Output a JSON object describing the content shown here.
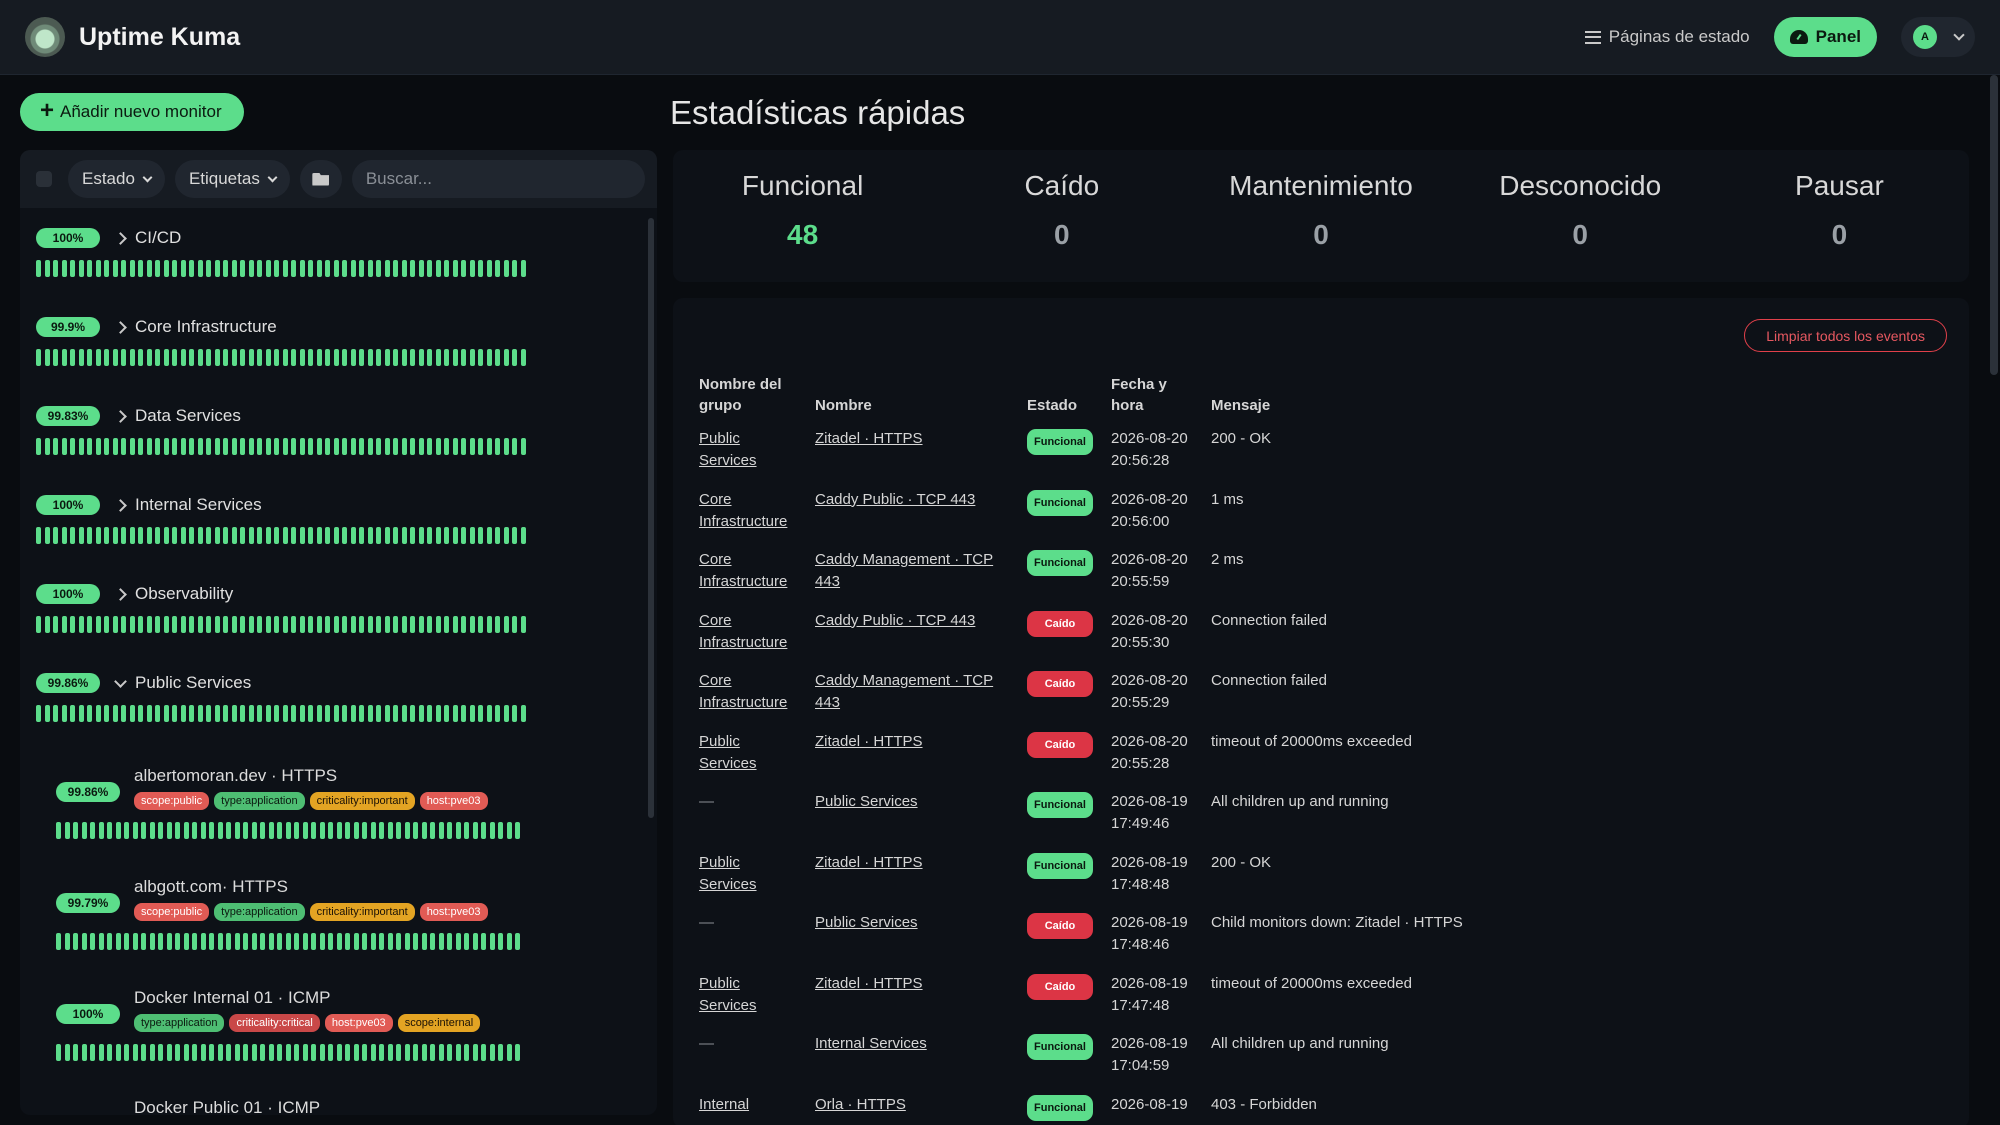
{
  "header": {
    "app_title": "Uptime Kuma",
    "status_pages_label": "Páginas de estado",
    "panel_label": "Panel",
    "avatar_initial": "A"
  },
  "sidebar": {
    "add_monitor_label": "Añadir nuevo monitor",
    "filter_state_label": "Estado",
    "filter_tags_label": "Etiquetas",
    "search_placeholder": "Buscar...",
    "groups": [
      {
        "name": "CI/CD",
        "uptime": "100%"
      },
      {
        "name": "Core Infrastructure",
        "uptime": "99.9%"
      },
      {
        "name": "Data Services",
        "uptime": "99.83%"
      },
      {
        "name": "Internal Services",
        "uptime": "100%"
      },
      {
        "name": "Observability",
        "uptime": "100%"
      },
      {
        "name": "Public Services",
        "uptime": "99.86%"
      }
    ],
    "children": [
      {
        "name": "albertomoran.dev · HTTPS",
        "uptime": "99.86%",
        "tags": [
          {
            "text": "scope:public",
            "color": "#e15b55"
          },
          {
            "text": "type:application",
            "color": "#4ebe73"
          },
          {
            "text": "criticality:important",
            "color": "#e3a423"
          },
          {
            "text": "host:pve03",
            "color": "#e15b55"
          }
        ]
      },
      {
        "name": "albgott.com· HTTPS",
        "uptime": "99.79%",
        "tags": [
          {
            "text": "scope:public",
            "color": "#e15b55"
          },
          {
            "text": "type:application",
            "color": "#4ebe73"
          },
          {
            "text": "criticality:important",
            "color": "#e3a423"
          },
          {
            "text": "host:pve03",
            "color": "#e15b55"
          }
        ]
      },
      {
        "name": "Docker Internal 01 · ICMP",
        "uptime": "100%",
        "tags": [
          {
            "text": "type:application",
            "color": "#4ebe73"
          },
          {
            "text": "criticality:critical",
            "color": "#c94848"
          },
          {
            "text": "host:pve03",
            "color": "#e15b55"
          },
          {
            "text": "scope:internal",
            "color": "#e3a423"
          }
        ]
      },
      {
        "name": "Docker Public 01 · ICMP"
      }
    ]
  },
  "stats": {
    "title": "Estadísticas rápidas",
    "items": [
      {
        "label": "Funcional",
        "value": "48"
      },
      {
        "label": "Caído",
        "value": "0"
      },
      {
        "label": "Mantenimiento",
        "value": "0"
      },
      {
        "label": "Desconocido",
        "value": "0"
      },
      {
        "label": "Pausar",
        "value": "0"
      }
    ]
  },
  "events": {
    "clear_label": "Limpiar todos los eventos",
    "headers": {
      "group_line1": "Nombre del",
      "group_line2": "grupo",
      "name": "Nombre",
      "state": "Estado",
      "date_line1": "Fecha y",
      "date_line2": "hora",
      "message": "Mensaje"
    },
    "rows": [
      {
        "group1": "Public",
        "group2": "Services",
        "name1": "Zitadel · HTTPS",
        "name2": "",
        "state": "Funcional",
        "date": "2026-08-20",
        "time": "20:56:28",
        "message": "200 - OK"
      },
      {
        "group1": "Core",
        "group2": "Infrastructure",
        "name1": "Caddy Public · TCP 443",
        "name2": "",
        "state": "Funcional",
        "date": "2026-08-20",
        "time": "20:56:00",
        "message": "1 ms"
      },
      {
        "group1": "Core",
        "group2": "Infrastructure",
        "name1": "Caddy Management · TCP",
        "name2": "443",
        "state": "Funcional",
        "date": "2026-08-20",
        "time": "20:55:59",
        "message": "2 ms"
      },
      {
        "group1": "Core",
        "group2": "Infrastructure",
        "name1": "Caddy Public · TCP 443",
        "name2": "",
        "state": "Caído",
        "date": "2026-08-20",
        "time": "20:55:30",
        "message": "Connection failed"
      },
      {
        "group1": "Core",
        "group2": "Infrastructure",
        "name1": "Caddy Management · TCP",
        "name2": "443",
        "state": "Caído",
        "date": "2026-08-20",
        "time": "20:55:29",
        "message": "Connection failed"
      },
      {
        "group1": "Public",
        "group2": "Services",
        "name1": "Zitadel · HTTPS",
        "name2": "",
        "state": "Caído",
        "date": "2026-08-20",
        "time": "20:55:28",
        "message": "timeout of 20000ms exceeded"
      },
      {
        "group1": "—",
        "group2": "",
        "name1": "Public Services",
        "name2": "",
        "state": "Funcional",
        "date": "2026-08-19",
        "time": "17:49:46",
        "message": "All children up and running"
      },
      {
        "group1": "Public",
        "group2": "Services",
        "name1": "Zitadel · HTTPS",
        "name2": "",
        "state": "Funcional",
        "date": "2026-08-19",
        "time": "17:48:48",
        "message": "200 - OK"
      },
      {
        "group1": "—",
        "group2": "",
        "name1": "Public Services",
        "name2": "",
        "state": "Caído",
        "date": "2026-08-19",
        "time": "17:48:46",
        "message": "Child monitors down: Zitadel · HTTPS"
      },
      {
        "group1": "Public",
        "group2": "Services",
        "name1": "Zitadel · HTTPS",
        "name2": "",
        "state": "Caído",
        "date": "2026-08-19",
        "time": "17:47:48",
        "message": "timeout of 20000ms exceeded"
      },
      {
        "group1": "—",
        "group2": "",
        "name1": "Internal Services",
        "name2": "",
        "state": "Funcional",
        "date": "2026-08-19",
        "time": "17:04:59",
        "message": "All children up and running"
      },
      {
        "group1": "Internal",
        "group2": "",
        "name1": "Orla · HTTPS",
        "name2": "",
        "state": "Funcional",
        "date": "2026-08-19",
        "time": "",
        "message": "403 - Forbidden"
      }
    ]
  },
  "colors": {
    "accent": "#5cdd8b",
    "down": "#dc3545",
    "background": "#090c10",
    "card": "#0d1117"
  }
}
